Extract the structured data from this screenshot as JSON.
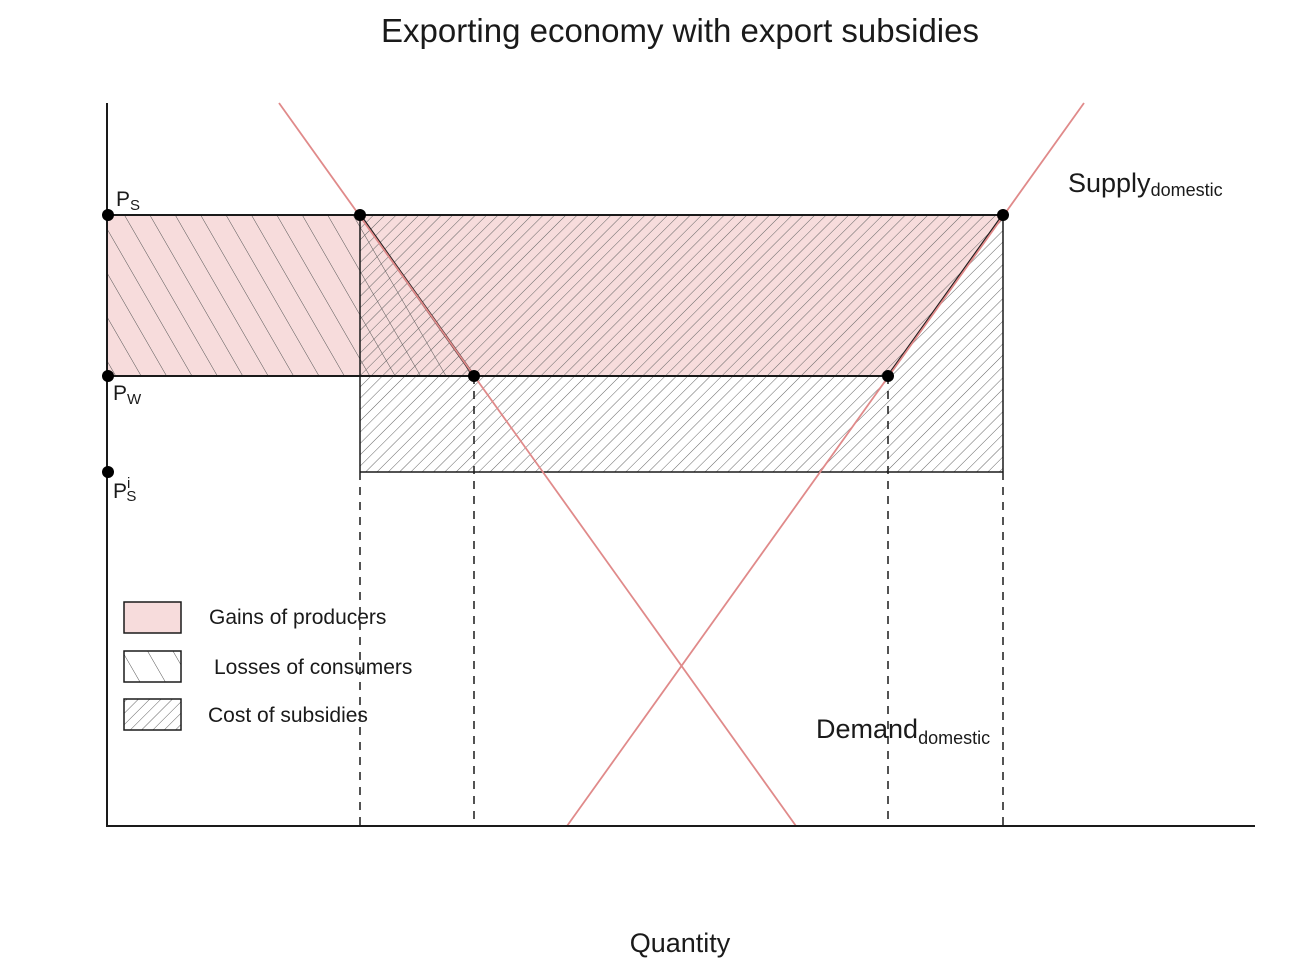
{
  "title": "Exporting economy with export subsidies",
  "xlabel": "Quantity",
  "curves": {
    "supply": {
      "label": "Supply",
      "sub": "domestic",
      "color": "#e08a8a"
    },
    "demand": {
      "label": "Demand",
      "sub": "domestic",
      "color": "#e08a8a"
    }
  },
  "prices": {
    "ps": {
      "main": "P",
      "sub": "S",
      "sup": ""
    },
    "pw": {
      "main": "P",
      "sub": "W",
      "sup": ""
    },
    "psi": {
      "main": "P",
      "sub": "S",
      "sup": "i"
    }
  },
  "legend": [
    {
      "key": "gains",
      "label": "Gains of producers",
      "pattern": "pink-fill"
    },
    {
      "key": "losses",
      "label": "Losses of consumers",
      "pattern": "sparse-hatch"
    },
    {
      "key": "cost",
      "label": "Cost of subsidies",
      "pattern": "dense-hatch"
    }
  ],
  "colors": {
    "pink_fill": "#f7dcdc",
    "curve_red": "#e08a8a",
    "ink": "#1a1a1a"
  }
}
